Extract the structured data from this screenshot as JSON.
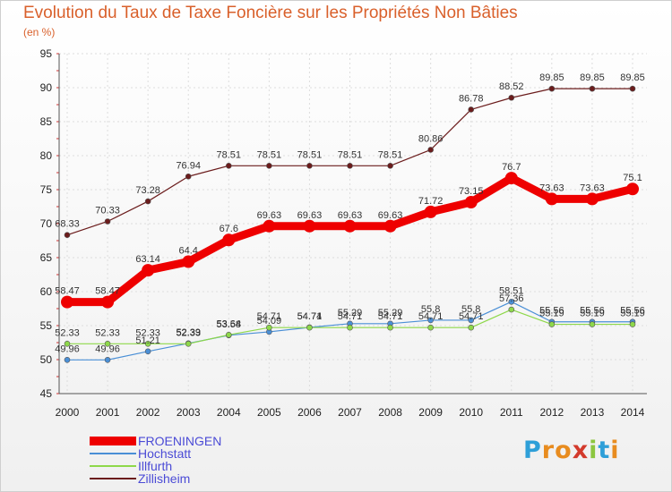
{
  "header": {
    "title": "Evolution du Taux de Taxe Foncière sur les Propriétés Non Bâties",
    "unit": "(en %)"
  },
  "chart_data": {
    "type": "line",
    "title": "Evolution du Taux de Taxe Foncière sur les Propriétés Non Bâties",
    "ylabel": "(en %)",
    "xlabel": "",
    "ylim": [
      45,
      95
    ],
    "y_ticks": [
      45,
      50,
      55,
      60,
      65,
      70,
      75,
      80,
      85,
      90,
      95
    ],
    "grid": true,
    "categories": [
      "2000",
      "2001",
      "2002",
      "2003",
      "2004",
      "2005",
      "2006",
      "2007",
      "2008",
      "2009",
      "2010",
      "2011",
      "2012",
      "2013",
      "2014"
    ],
    "series": [
      {
        "name": "Zillisheim",
        "color": "#6b1c1c",
        "values": [
          68.33,
          70.33,
          73.28,
          76.94,
          78.51,
          78.51,
          78.51,
          78.51,
          78.51,
          80.86,
          86.78,
          88.52,
          89.85,
          89.85,
          89.85
        ],
        "labels": [
          "68.33",
          "70.33",
          "73.28",
          "76.94",
          "78.51",
          "78.51",
          "78.51",
          "78.51",
          "78.51",
          "80.86",
          "86.78",
          "88.52",
          "89.85",
          "89.85",
          "89.85"
        ]
      },
      {
        "name": "FROENINGEN",
        "color": "#ee0000",
        "values": [
          58.47,
          58.47,
          63.14,
          64.4,
          67.6,
          69.63,
          69.63,
          69.63,
          69.63,
          71.72,
          73.15,
          76.7,
          73.63,
          73.63,
          75.1
        ],
        "labels": [
          "58.47",
          "58.47",
          "63.14",
          "64.4",
          "67.6",
          "69.63",
          "69.63",
          "69.63",
          "69.63",
          "71.72",
          "73.15",
          "76.7",
          "73.63",
          "73.63",
          "75.1"
        ]
      },
      {
        "name": "Hochstatt",
        "color": "#4a8fd6",
        "values": [
          49.96,
          49.96,
          51.21,
          52.39,
          53.58,
          54.09,
          54.74,
          55.29,
          55.29,
          55.8,
          55.8,
          58.51,
          55.56,
          55.56,
          55.56
        ],
        "labels": [
          "49.96",
          "49.96",
          "51.21",
          "52.39",
          "53.58",
          "54.09",
          "54.74",
          "55.29",
          "55.29",
          "55.8",
          "55.8",
          "58.51",
          "55.56",
          "55.56",
          "55.56"
        ]
      },
      {
        "name": "Illfurth",
        "color": "#8ed84a",
        "values": [
          52.33,
          52.33,
          52.33,
          52.33,
          53.64,
          54.71,
          54.71,
          54.71,
          54.71,
          54.71,
          54.71,
          57.36,
          55.19,
          55.19,
          55.19
        ],
        "labels": [
          "52.33",
          "52.33",
          "52.33",
          "52.33",
          "53.64",
          "54.71",
          "54.71",
          "54.71",
          "54.71",
          "54.71",
          "54.71",
          "57.36",
          "55.19",
          "55.19",
          "55.19"
        ]
      }
    ]
  },
  "legend": {
    "items": [
      {
        "name": "FROENINGEN",
        "color": "#ee0000"
      },
      {
        "name": "Hochstatt",
        "color": "#4a8fd6"
      },
      {
        "name": "Illfurth",
        "color": "#8ed84a"
      },
      {
        "name": "Zillisheim",
        "color": "#6b1c1c"
      }
    ]
  },
  "logo": {
    "letters": [
      "P",
      "r",
      "o",
      "x",
      "i",
      "t",
      "i"
    ],
    "colors": [
      "#2e9fd8",
      "#e88c1f",
      "#e88c1f",
      "#d33a2c",
      "#8cc63f",
      "#2e9fd8",
      "#e88c1f"
    ]
  }
}
